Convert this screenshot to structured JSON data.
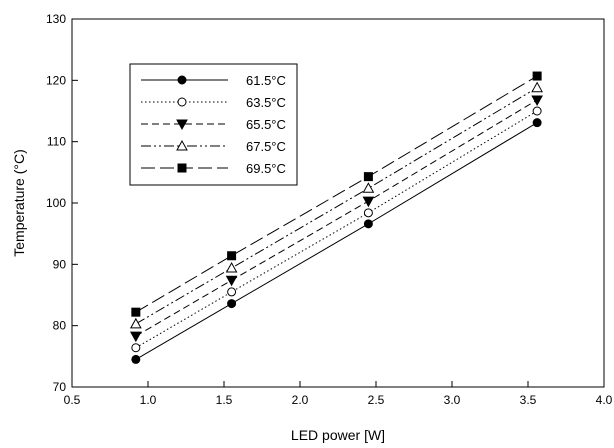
{
  "chart_data": {
    "type": "line",
    "title": "",
    "xlabel": "LED power [W]",
    "ylabel": "Temperature (°C)",
    "xlim": [
      0.5,
      4.0
    ],
    "ylim": [
      70,
      130
    ],
    "xticks": [
      "0.5",
      "1.0",
      "1.5",
      "2.0",
      "2.5",
      "3.0",
      "3.5",
      "4.0"
    ],
    "yticks": [
      "70",
      "80",
      "90",
      "100",
      "110",
      "120",
      "130"
    ],
    "grid": false,
    "legend_position": "top-left",
    "x": [
      0.92,
      1.55,
      2.45,
      3.56
    ],
    "series": [
      {
        "name": "61.5°C",
        "values": [
          74.5,
          83.6,
          96.6,
          113.1
        ],
        "marker": "filled-circle",
        "dash": "solid"
      },
      {
        "name": "63.5°C",
        "values": [
          76.4,
          85.5,
          98.4,
          115.0
        ],
        "marker": "open-circle",
        "dash": "dotted"
      },
      {
        "name": "65.5°C",
        "values": [
          78.3,
          87.4,
          100.3,
          116.8
        ],
        "marker": "filled-triangle-down",
        "dash": "dashed"
      },
      {
        "name": "67.5°C",
        "values": [
          80.3,
          89.4,
          102.4,
          118.8
        ],
        "marker": "open-triangle-up",
        "dash": "dash-dot-dot"
      },
      {
        "name": "69.5°C",
        "values": [
          82.2,
          91.4,
          104.3,
          120.7
        ],
        "marker": "filled-square",
        "dash": "long-dash"
      }
    ]
  }
}
